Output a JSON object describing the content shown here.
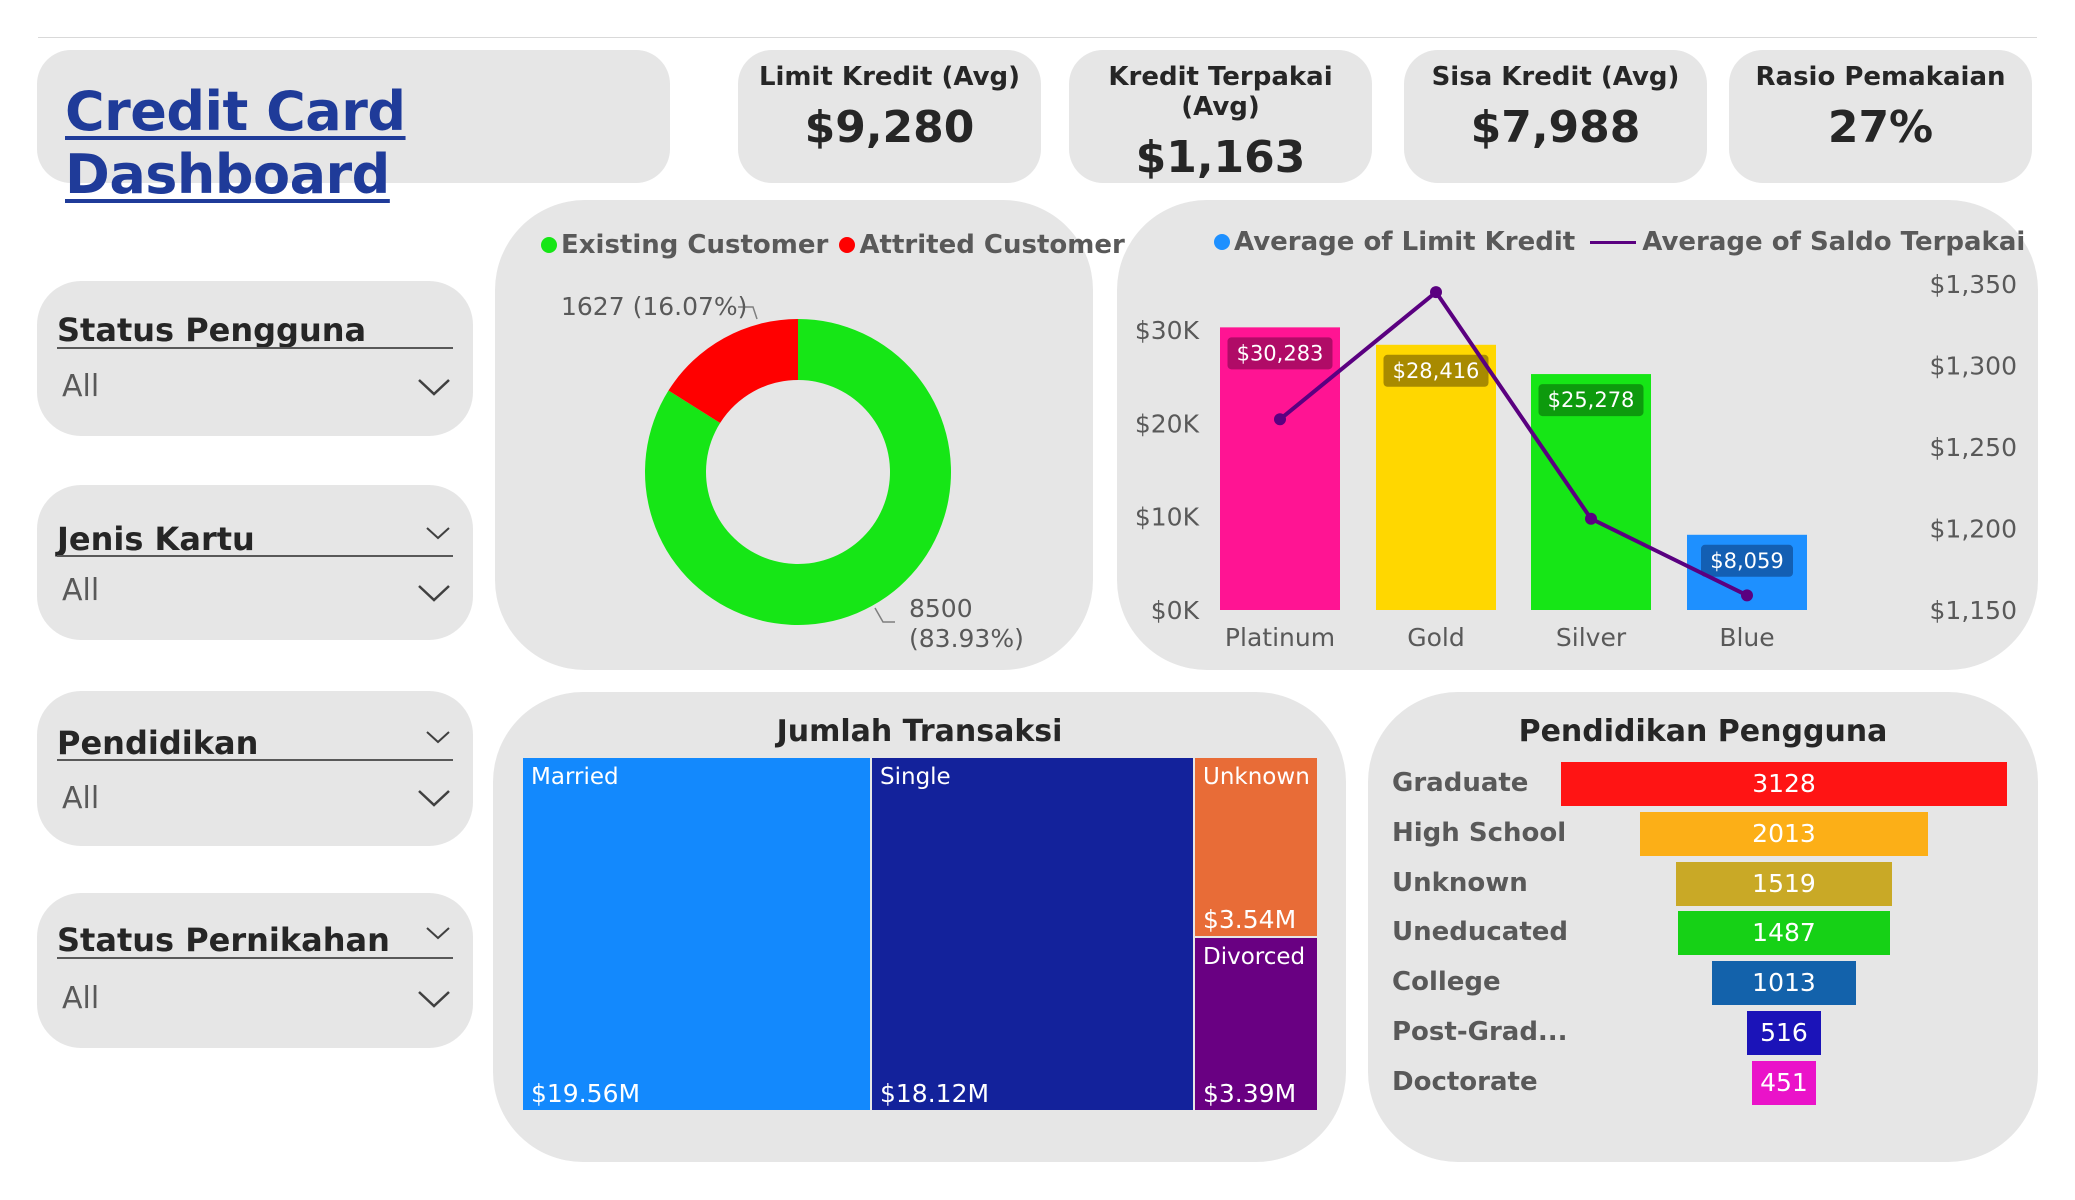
{
  "header": {
    "title": "Credit Card Dashboard"
  },
  "kpis": [
    {
      "label": "Limit Kredit (Avg)",
      "value": "$9,280"
    },
    {
      "label": "Kredit Terpakai (Avg)",
      "value": "$1,163"
    },
    {
      "label": "Sisa Kredit (Avg)",
      "value": "$7,988"
    },
    {
      "label": "Rasio Pemakaian",
      "value": "27%"
    }
  ],
  "slicers": [
    {
      "label": "Status Pengguna",
      "value": "All"
    },
    {
      "label": "Jenis Kartu",
      "value": "All"
    },
    {
      "label": "Pendidikan",
      "value": "All"
    },
    {
      "label": "Status Pernikahan",
      "value": "All"
    }
  ],
  "colors": {
    "existing": "#16e616",
    "attrited": "#ff0000",
    "platinum": "#ff1493",
    "gold": "#ffd700",
    "silver": "#16e616",
    "blue": "#1e90ff",
    "line": "#5a0080",
    "married": "#1389fd",
    "single": "#13229b",
    "unknown": "#e86c37",
    "divorced": "#690082",
    "title": "#1f3b99"
  },
  "icons": {
    "dropdown": "chevron-down-icon"
  },
  "chart_data": [
    {
      "type": "pie",
      "style": "donut",
      "legend": [
        "Existing Customer",
        "Attrited Customer"
      ],
      "legend_position": "top",
      "slices": [
        {
          "name": "Existing Customer",
          "value": 8500,
          "label_line1": "8500",
          "label_line2": "(83.93%)"
        },
        {
          "name": "Attrited Customer",
          "value": 1627,
          "label": "1627 (16.07%)"
        }
      ]
    },
    {
      "type": "bar",
      "combo": "bar+line",
      "legend": [
        "Average of Limit Kredit",
        "Average of Saldo Terpakai"
      ],
      "categories": [
        "Platinum",
        "Gold",
        "Silver",
        "Blue"
      ],
      "series": [
        {
          "name": "Average of Limit Kredit",
          "values": [
            30283,
            28416,
            25278,
            8059
          ],
          "labels": [
            "$30,283",
            "$28,416",
            "$25,278",
            "$8,059"
          ],
          "axis": "left"
        },
        {
          "name": "Average of Saldo Terpakai",
          "type": "line",
          "values": [
            1267,
            1345,
            1206,
            1159
          ],
          "axis": "right"
        }
      ],
      "ylim": [
        0,
        30000
      ],
      "y_ticks": [
        "$0K",
        "$10K",
        "$20K",
        "$30K"
      ],
      "y2lim": [
        1150,
        1350
      ],
      "y2_ticks": [
        "$1,150",
        "$1,200",
        "$1,250",
        "$1,300",
        "$1,350"
      ],
      "grid": false
    },
    {
      "type": "treemap",
      "title": "Jumlah Transaksi",
      "items": [
        {
          "name": "Married",
          "value": 19.56,
          "label": "$19.56M"
        },
        {
          "name": "Single",
          "value": 18.12,
          "label": "$18.12M"
        },
        {
          "name": "Unknown",
          "value": 3.54,
          "label": "$3.54M"
        },
        {
          "name": "Divorced",
          "value": 3.39,
          "label": "$3.39M"
        }
      ]
    },
    {
      "type": "bar",
      "style": "funnel",
      "title": "Pendidikan Pengguna",
      "categories": [
        "Graduate",
        "High School",
        "Unknown",
        "Uneducated",
        "College",
        "Post-Grad...",
        "Doctorate"
      ],
      "values": [
        3128,
        2013,
        1519,
        1487,
        1013,
        516,
        451
      ],
      "colors": [
        "#ff1414",
        "#fcaf17",
        "#c9a926",
        "#16d116",
        "#1362ab",
        "#1b13b8",
        "#ea13c9"
      ]
    }
  ]
}
